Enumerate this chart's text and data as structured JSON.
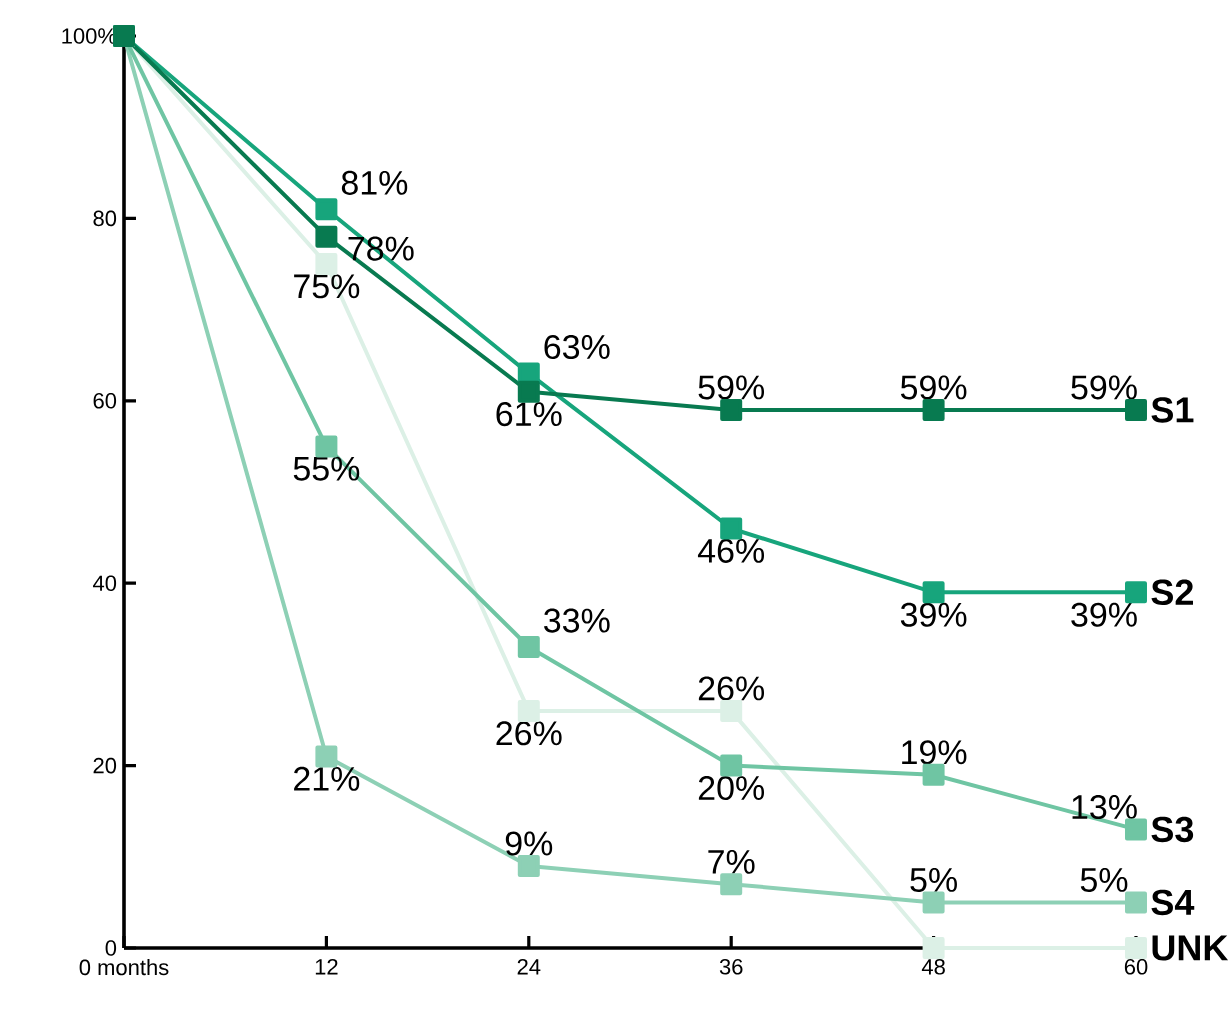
{
  "chart_data": {
    "type": "line",
    "x": [
      0,
      12,
      24,
      36,
      48,
      60
    ],
    "xlim": [
      0,
      60
    ],
    "ylim": [
      0,
      100
    ],
    "xticks": [
      {
        "value": 0,
        "label": "0 months"
      },
      12,
      24,
      36,
      48,
      60
    ],
    "yticks": [
      0,
      20,
      40,
      60,
      80,
      {
        "value": 100,
        "label": "100%"
      }
    ],
    "marker": "square",
    "line_style": "solid",
    "grid": false,
    "legend": false,
    "series": [
      {
        "name": "S1",
        "color": "#087a50",
        "values": [
          100,
          78,
          61,
          59,
          59,
          59
        ],
        "value_labels": [
          null,
          "78%",
          "61%",
          "59%",
          "59%",
          "59%"
        ]
      },
      {
        "name": "S2",
        "color": "#17a57c",
        "values": [
          100,
          81,
          63,
          46,
          39,
          39
        ],
        "value_labels": [
          null,
          "81%",
          "63%",
          "46%",
          "39%",
          "39%"
        ]
      },
      {
        "name": "S3",
        "color": "#6fc5a3",
        "values": [
          100,
          55,
          33,
          20,
          19,
          13
        ],
        "value_labels": [
          null,
          "55%",
          "33%",
          "20%",
          "19%",
          "13%"
        ]
      },
      {
        "name": "S4",
        "color": "#8dd0b5",
        "values": [
          100,
          21,
          9,
          7,
          5,
          5
        ],
        "value_labels": [
          null,
          "21%",
          "9%",
          "7%",
          "5%",
          "5%"
        ]
      },
      {
        "name": "UNK",
        "color": "#dcf0e6",
        "values": [
          100,
          75,
          26,
          26,
          0,
          0
        ],
        "value_labels": [
          null,
          "75%",
          "26%",
          "26%",
          null,
          null
        ]
      }
    ]
  }
}
